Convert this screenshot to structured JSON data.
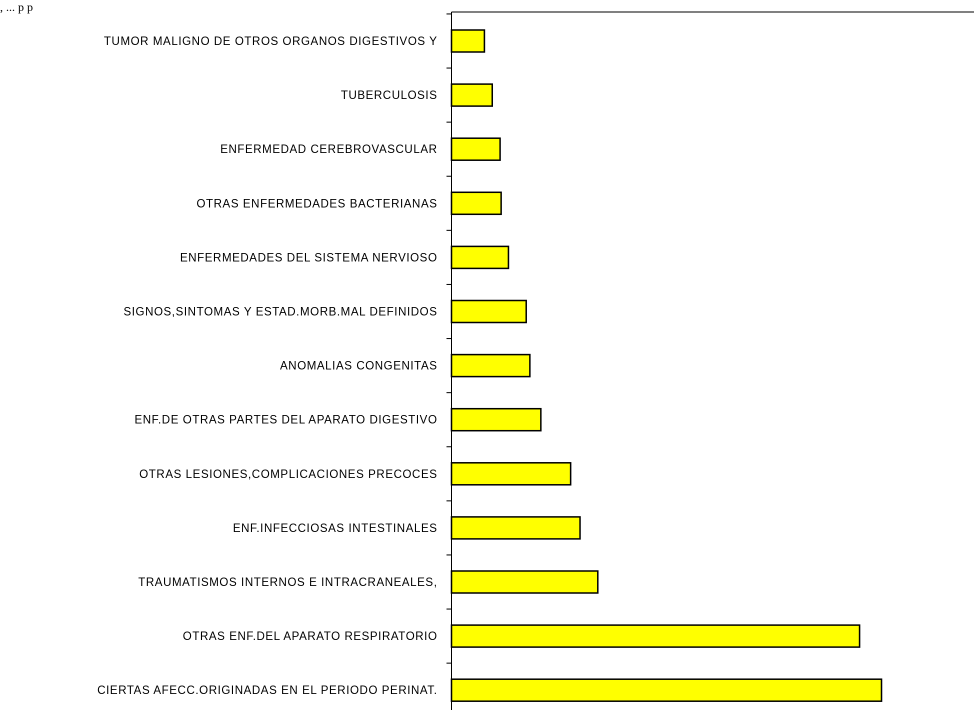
{
  "caption": ", ... p p",
  "chart_data": {
    "type": "bar",
    "orientation": "horizontal",
    "bar_color": "#FFFF00",
    "bar_edge_color": "#000000",
    "grid": false,
    "xlim": [
      0,
      100
    ],
    "categories": [
      "TUMOR MALIGNO DE OTROS ORGANOS DIGESTIVOS  Y",
      "TUBERCULOSIS",
      "ENFERMEDAD CEREBROVASCULAR",
      "OTRAS ENFERMEDADES BACTERIANAS",
      "ENFERMEDADES DEL SISTEMA NERVIOSO",
      "SIGNOS,SINTOMAS Y ESTAD.MORB.MAL DEFINIDOS",
      "ANOMALIAS CONGENITAS",
      "ENF.DE OTRAS PARTES DEL APARATO DIGESTIVO",
      "OTRAS LESIONES,COMPLICACIONES PRECOCES",
      "ENF.INFECCIOSAS INTESTINALES",
      "TRAUMATISMOS INTERNOS E INTRACRANEALES,",
      "OTRAS ENF.DEL APARATO RESPIRATORIO",
      "CIERTAS AFECC.ORIGINADAS EN EL PERIODO PERINAT."
    ],
    "values": [
      6.3,
      7.8,
      9.3,
      9.5,
      10.9,
      14.3,
      15.0,
      17.1,
      22.8,
      24.6,
      28.0,
      78.1,
      82.3
    ]
  }
}
